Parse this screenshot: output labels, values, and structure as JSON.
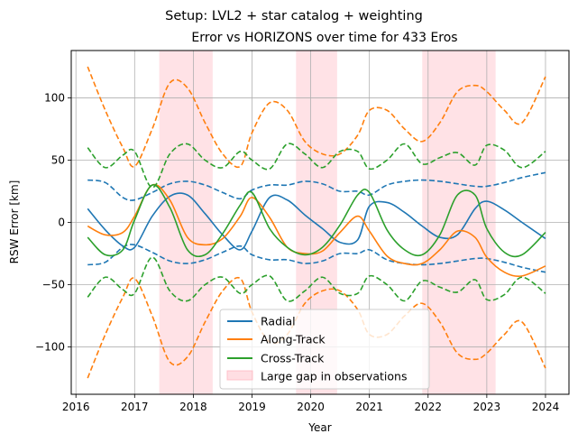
{
  "figure": {
    "suptitle": "Setup: LVL2 + star catalog + weighting",
    "title": "Error vs HORIZONS over time for 433 Eros"
  },
  "chart_data": {
    "type": "line",
    "title": "Error vs HORIZONS over time for 433 Eros",
    "xlabel": "Year",
    "ylabel": "RSW Error [km]",
    "xlim": [
      2015.92,
      2024.4
    ],
    "ylim": [
      -138,
      138
    ],
    "xticks": [
      2016,
      2017,
      2018,
      2019,
      2020,
      2021,
      2022,
      2023,
      2024
    ],
    "xtick_labels": [
      "2016",
      "2017",
      "2018",
      "2019",
      "2020",
      "2021",
      "2022",
      "2023",
      "2024"
    ],
    "yticks": [
      -100,
      -50,
      0,
      50,
      100
    ],
    "ytick_labels": [
      "−100",
      "−50",
      "0",
      "50",
      "100"
    ],
    "grid": true,
    "legend_position": "lower-center",
    "colors": {
      "radial": "#1f77b4",
      "along": "#ff7f0e",
      "cross": "#2ca02c",
      "gap": "#ffb6c1"
    },
    "gap_label": "Large gap in observations",
    "gaps": [
      [
        2017.42,
        2018.33
      ],
      [
        2019.75,
        2020.45
      ],
      [
        2021.9,
        2023.15
      ]
    ],
    "series": [
      {
        "name": "Radial",
        "key": "radial",
        "x": [
          2016.2,
          2016.5,
          2016.8,
          2017.0,
          2017.3,
          2017.6,
          2017.9,
          2018.2,
          2018.5,
          2018.8,
          2019.0,
          2019.3,
          2019.6,
          2019.9,
          2020.2,
          2020.5,
          2020.8,
          2021.0,
          2021.3,
          2021.6,
          2021.9,
          2022.2,
          2022.5,
          2022.8,
          2023.0,
          2023.3,
          2023.6,
          2024.0
        ],
        "value": [
          11,
          -6,
          -19,
          -20,
          5,
          21,
          22,
          7,
          -10,
          -22,
          -7,
          20,
          18,
          6,
          -5,
          -16,
          -14,
          13,
          16,
          8,
          -3,
          -12,
          -10,
          11,
          17,
          10,
          0,
          -13
        ],
        "band": [
          34,
          32,
          20,
          18,
          24,
          31,
          33,
          30,
          24,
          19,
          26,
          30,
          30,
          33,
          31,
          25,
          25,
          22,
          30,
          33,
          34,
          33,
          31,
          29,
          29,
          32,
          36,
          40
        ]
      },
      {
        "name": "Along-Track",
        "key": "along",
        "x": [
          2016.2,
          2016.5,
          2016.8,
          2017.0,
          2017.3,
          2017.6,
          2017.9,
          2018.2,
          2018.5,
          2018.8,
          2019.0,
          2019.3,
          2019.6,
          2019.9,
          2020.2,
          2020.5,
          2020.8,
          2021.0,
          2021.3,
          2021.6,
          2021.9,
          2022.2,
          2022.5,
          2022.8,
          2023.0,
          2023.3,
          2023.6,
          2024.0
        ],
        "value": [
          -3,
          -10,
          -8,
          5,
          30,
          18,
          -12,
          -18,
          -13,
          5,
          20,
          4,
          -20,
          -25,
          -23,
          -8,
          5,
          -7,
          -27,
          -33,
          -33,
          -22,
          -7,
          -12,
          -28,
          -40,
          -43,
          -35
        ],
        "band": [
          125,
          90,
          60,
          45,
          75,
          112,
          108,
          80,
          55,
          45,
          72,
          96,
          90,
          65,
          55,
          55,
          70,
          90,
          90,
          75,
          65,
          80,
          105,
          110,
          105,
          90,
          80,
          117
        ]
      },
      {
        "name": "Cross-Track",
        "key": "cross",
        "x": [
          2016.2,
          2016.5,
          2016.8,
          2017.0,
          2017.3,
          2017.6,
          2017.9,
          2018.2,
          2018.5,
          2018.8,
          2019.0,
          2019.3,
          2019.6,
          2019.9,
          2020.2,
          2020.5,
          2020.8,
          2021.0,
          2021.3,
          2021.6,
          2021.9,
          2022.2,
          2022.5,
          2022.8,
          2023.0,
          2023.3,
          2023.6,
          2024.0
        ],
        "value": [
          -12,
          -26,
          -22,
          2,
          30,
          12,
          -22,
          -26,
          -9,
          14,
          24,
          -5,
          -20,
          -26,
          -20,
          -2,
          22,
          24,
          -6,
          -22,
          -26,
          -10,
          22,
          22,
          -5,
          -24,
          -26,
          -8
        ],
        "band": [
          60,
          44,
          54,
          57,
          28,
          55,
          63,
          50,
          44,
          57,
          50,
          43,
          63,
          55,
          44,
          57,
          57,
          43,
          50,
          63,
          47,
          52,
          56,
          46,
          62,
          58,
          44,
          57
        ]
      }
    ]
  }
}
